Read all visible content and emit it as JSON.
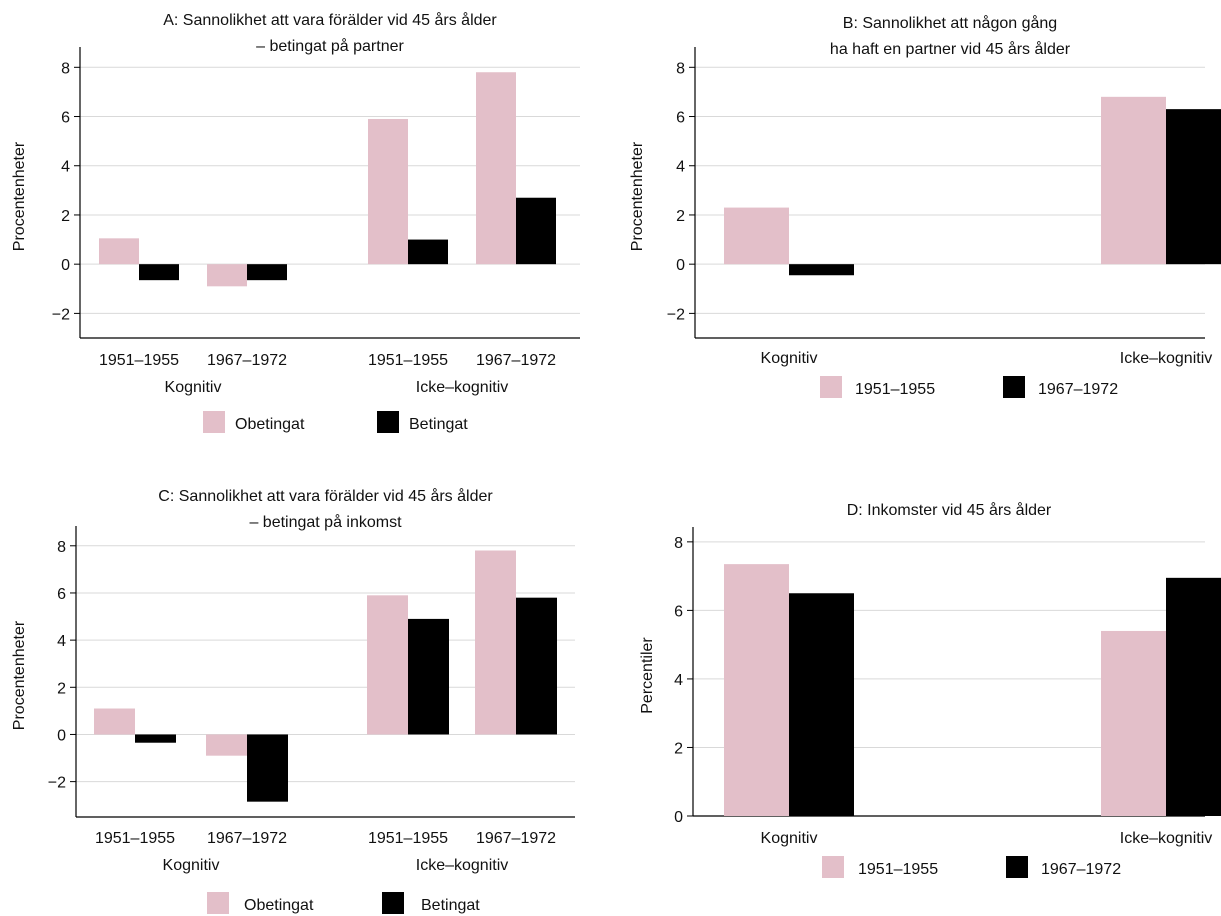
{
  "colors": {
    "pink": "#e3bfc9",
    "black": "#000000",
    "grid": "#d9d9d9",
    "axis": "#000000"
  },
  "chart_data": [
    {
      "id": "A",
      "type": "bar",
      "title_lines": [
        "A: Sannolikhet att vara förälder vid 45 års ålder",
        "– betingat på partner"
      ],
      "ylabel": "Procentenheter",
      "ylim": [
        -3,
        8.5
      ],
      "yticks": [
        -2,
        0,
        2,
        4,
        6,
        8
      ],
      "ytick_labels": [
        "−2",
        "0",
        "2",
        "4",
        "6",
        "8"
      ],
      "grid": true,
      "categories": [
        "1951–1955",
        "1967–1972",
        "1951–1955",
        "1967–1972"
      ],
      "groups": [
        "Kognitiv",
        "Icke–kognitiv"
      ],
      "series": [
        {
          "name": "Obetingat",
          "color": "#e3bfc9",
          "values": [
            1.05,
            -0.9,
            5.9,
            7.8
          ]
        },
        {
          "name": "Betingat",
          "color": "#000000",
          "values": [
            -0.65,
            -0.65,
            1.0,
            2.7
          ]
        }
      ],
      "legend": "bottom"
    },
    {
      "id": "B",
      "type": "bar",
      "title_lines": [
        "B: Sannolikhet att någon gång",
        "ha haft en partner vid 45 års ålder"
      ],
      "ylabel": "Procentenheter",
      "ylim": [
        -3,
        8.5
      ],
      "yticks": [
        -2,
        0,
        2,
        4,
        6,
        8
      ],
      "ytick_labels": [
        "−2",
        "0",
        "2",
        "4",
        "6",
        "8"
      ],
      "grid": true,
      "categories": [
        "Kognitiv",
        "Icke–kognitiv"
      ],
      "series": [
        {
          "name": "1951–1955",
          "color": "#e3bfc9",
          "values": [
            2.3,
            6.8
          ]
        },
        {
          "name": "1967–1972",
          "color": "#000000",
          "values": [
            -0.45,
            6.3
          ]
        }
      ],
      "legend": "bottom"
    },
    {
      "id": "C",
      "type": "bar",
      "title_lines": [
        "C: Sannolikhet att vara förälder vid 45 års ålder",
        "– betingat på inkomst"
      ],
      "ylabel": "Procentenheter",
      "ylim": [
        -3.5,
        8.5
      ],
      "yticks": [
        -2,
        0,
        2,
        4,
        6,
        8
      ],
      "ytick_labels": [
        "−2",
        "0",
        "2",
        "4",
        "6",
        "8"
      ],
      "grid": true,
      "categories": [
        "1951–1955",
        "1967–1972",
        "1951–1955",
        "1967–1972"
      ],
      "groups": [
        "Kognitiv",
        "Icke–kognitiv"
      ],
      "series": [
        {
          "name": "Obetingat",
          "color": "#e3bfc9",
          "values": [
            1.1,
            -0.9,
            5.9,
            7.8
          ]
        },
        {
          "name": "Betingat",
          "color": "#000000",
          "values": [
            -0.35,
            -2.85,
            4.9,
            5.8
          ]
        }
      ],
      "legend": "bottom"
    },
    {
      "id": "D",
      "type": "bar",
      "title_lines": [
        "D: Inkomster vid 45 års ålder"
      ],
      "ylabel": "Percentiler",
      "ylim": [
        0,
        8.2
      ],
      "yticks": [
        0,
        2,
        4,
        6,
        8
      ],
      "ytick_labels": [
        "0",
        "2",
        "4",
        "6",
        "8"
      ],
      "grid": true,
      "categories": [
        "Kognitiv",
        "Icke–kognitiv"
      ],
      "series": [
        {
          "name": "1951–1955",
          "color": "#e3bfc9",
          "values": [
            7.35,
            5.4
          ]
        },
        {
          "name": "1967–1972",
          "color": "#000000",
          "values": [
            6.5,
            6.95
          ]
        }
      ],
      "legend": "bottom"
    }
  ]
}
